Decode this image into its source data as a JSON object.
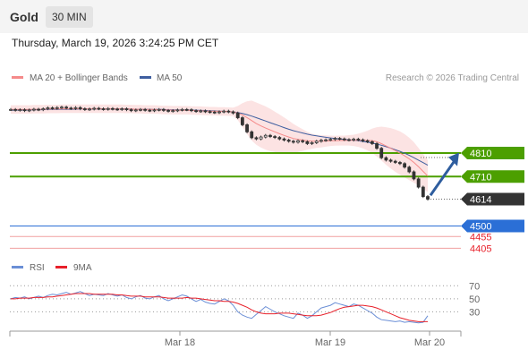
{
  "header": {
    "instrument": "Gold",
    "timeframe": "30 MIN",
    "datetime": "Thursday, March 19, 2026 3:24:25 PM CET"
  },
  "colors": {
    "ma20": "#f58a8a",
    "bollinger_fill": "#fce0e0",
    "ma50": "#3f5fa0",
    "price": "#333333",
    "resistance": "#4c9f00",
    "support": "#2b6fd6",
    "support_minor": "#f0a0a0",
    "support_minor_text": "#e8202a",
    "last_price_bg": "#333333",
    "arrow": "#2e5d9e",
    "rsi": "#6b8fd6",
    "rsi_ma": "#e8202a"
  },
  "chart_data": [
    {
      "type": "line",
      "title": "",
      "legend": [
        {
          "label": "MA 20 + Bollinger Bands",
          "color": "#f58a8a"
        },
        {
          "label": "MA 50",
          "color": "#3f5fa0"
        }
      ],
      "credit": "Research © 2026 Trading Central",
      "x_ticks": [
        "Mar 18",
        "Mar 19",
        "Mar 20"
      ],
      "ylim": [
        4380,
        5080
      ],
      "price": [
        4995,
        4992,
        4994,
        4990,
        4993,
        4996,
        4994,
        4998,
        5002,
        5000,
        5003,
        5005,
        5001,
        4999,
        5003,
        4998,
        4995,
        4997,
        5000,
        4998,
        4996,
        4999,
        4997,
        4995,
        4998,
        4994,
        4990,
        4993,
        4995,
        4992,
        4990,
        4993,
        4995,
        4991,
        4988,
        4990,
        4993,
        4995,
        4994,
        4990,
        4987,
        4989,
        4986,
        4984,
        4982,
        4985,
        4988,
        4985,
        4980,
        4960,
        4930,
        4900,
        4875,
        4870,
        4878,
        4885,
        4880,
        4876,
        4870,
        4865,
        4860,
        4856,
        4862,
        4858,
        4850,
        4854,
        4860,
        4864,
        4866,
        4868,
        4872,
        4870,
        4867,
        4865,
        4869,
        4866,
        4862,
        4858,
        4850,
        4830,
        4790,
        4780,
        4775,
        4770,
        4765,
        4750,
        4730,
        4700,
        4665,
        4625,
        4614
      ],
      "ma20": [
        4995,
        4995,
        4995,
        4995,
        4995,
        4996,
        4996,
        4996,
        4997,
        4997,
        4997,
        4998,
        4998,
        4998,
        4998,
        4998,
        4998,
        4998,
        4998,
        4998,
        4998,
        4998,
        4998,
        4998,
        4998,
        4997,
        4997,
        4996,
        4996,
        4995,
        4995,
        4995,
        4994,
        4993,
        4993,
        4992,
        4992,
        4992,
        4992,
        4991,
        4990,
        4990,
        4989,
        4988,
        4988,
        4987,
        4987,
        4986,
        4985,
        4980,
        4972,
        4960,
        4948,
        4935,
        4925,
        4916,
        4908,
        4900,
        4892,
        4885,
        4878,
        4872,
        4868,
        4865,
        4862,
        4860,
        4860,
        4860,
        4861,
        4862,
        4862,
        4863,
        4863,
        4864,
        4864,
        4864,
        4864,
        4863,
        4862,
        4858,
        4850,
        4840,
        4830,
        4820,
        4810,
        4798,
        4785,
        4770,
        4752,
        4732,
        4712
      ],
      "ma50": [
        4992,
        4992,
        4993,
        4993,
        4993,
        4994,
        4994,
        4994,
        4995,
        4995,
        4995,
        4996,
        4996,
        4996,
        4996,
        4997,
        4997,
        4997,
        4997,
        4997,
        4997,
        4997,
        4997,
        4997,
        4997,
        4997,
        4997,
        4996,
        4996,
        4996,
        4996,
        4995,
        4995,
        4995,
        4994,
        4994,
        4993,
        4993,
        4993,
        4992,
        4992,
        4991,
        4991,
        4990,
        4989,
        4988,
        4987,
        4986,
        4985,
        4982,
        4978,
        4973,
        4967,
        4960,
        4953,
        4946,
        4939,
        4932,
        4925,
        4918,
        4911,
        4905,
        4900,
        4895,
        4890,
        4886,
        4883,
        4880,
        4877,
        4874,
        4872,
        4870,
        4868,
        4866,
        4864,
        4862,
        4859,
        4856,
        4852,
        4848,
        4843,
        4837,
        4831,
        4824,
        4817,
        4809,
        4800,
        4790,
        4780,
        4769,
        4758
      ],
      "bb_width": [
        18,
        18,
        18,
        18,
        18,
        18,
        18,
        18,
        18,
        18,
        18,
        18,
        18,
        18,
        18,
        18,
        18,
        18,
        18,
        18,
        18,
        18,
        18,
        18,
        18,
        18,
        18,
        18,
        18,
        18,
        18,
        18,
        18,
        18,
        18,
        18,
        18,
        18,
        18,
        18,
        18,
        18,
        18,
        18,
        18,
        18,
        18,
        18,
        18,
        30,
        50,
        70,
        85,
        90,
        92,
        92,
        90,
        86,
        82,
        76,
        70,
        62,
        54,
        46,
        38,
        32,
        28,
        26,
        24,
        22,
        21,
        21,
        21,
        22,
        24,
        28,
        34,
        42,
        52,
        62,
        72,
        80,
        86,
        90,
        92,
        92,
        90,
        86,
        80,
        74,
        68
      ],
      "levels": [
        {
          "value": 4810,
          "label": "4810",
          "kind": "resistance"
        },
        {
          "value": 4710,
          "label": "4710",
          "kind": "resistance"
        },
        {
          "value": 4614,
          "label": "4614",
          "kind": "last"
        },
        {
          "value": 4500,
          "label": "4500",
          "kind": "support"
        },
        {
          "value": 4455,
          "label": "4455",
          "kind": "support_minor"
        },
        {
          "value": 4405,
          "label": "4405",
          "kind": "support_minor"
        }
      ],
      "forecast_arrow": {
        "from": 4630,
        "to": 4800
      }
    },
    {
      "type": "line",
      "title": "",
      "legend": [
        {
          "label": "RSI",
          "color": "#6b8fd6"
        },
        {
          "label": "9MA",
          "color": "#e8202a"
        }
      ],
      "ylim": [
        10,
        80
      ],
      "y_ticks": [
        "70",
        "50",
        "30"
      ],
      "rsi": [
        50,
        52,
        51,
        53,
        50,
        52,
        54,
        52,
        55,
        57,
        56,
        58,
        60,
        57,
        59,
        61,
        58,
        55,
        57,
        56,
        55,
        58,
        56,
        54,
        56,
        52,
        50,
        53,
        55,
        51,
        50,
        53,
        55,
        50,
        47,
        50,
        53,
        56,
        54,
        50,
        46,
        49,
        45,
        43,
        42,
        46,
        50,
        47,
        40,
        30,
        25,
        22,
        20,
        26,
        32,
        38,
        34,
        30,
        27,
        24,
        22,
        20,
        28,
        25,
        20,
        24,
        30,
        36,
        38,
        40,
        44,
        42,
        40,
        38,
        42,
        40,
        36,
        32,
        28,
        22,
        18,
        17,
        16,
        15,
        16,
        14,
        15,
        14,
        13,
        14,
        24
      ],
      "rsi_ma": [
        50,
        50,
        51,
        51,
        51,
        52,
        52,
        52,
        53,
        53,
        54,
        55,
        56,
        57,
        58,
        58,
        58,
        58,
        57,
        57,
        57,
        57,
        57,
        56,
        56,
        55,
        54,
        54,
        54,
        53,
        53,
        53,
        53,
        52,
        51,
        51,
        51,
        51,
        52,
        51,
        51,
        50,
        49,
        48,
        47,
        47,
        46,
        46,
        45,
        43,
        40,
        37,
        33,
        30,
        28,
        27,
        27,
        27,
        28,
        28,
        28,
        27,
        26,
        25,
        24,
        24,
        24,
        25,
        27,
        29,
        32,
        35,
        37,
        38,
        39,
        40,
        40,
        39,
        38,
        36,
        33,
        30,
        27,
        24,
        21,
        19,
        17,
        16,
        15,
        15,
        15
      ]
    }
  ]
}
